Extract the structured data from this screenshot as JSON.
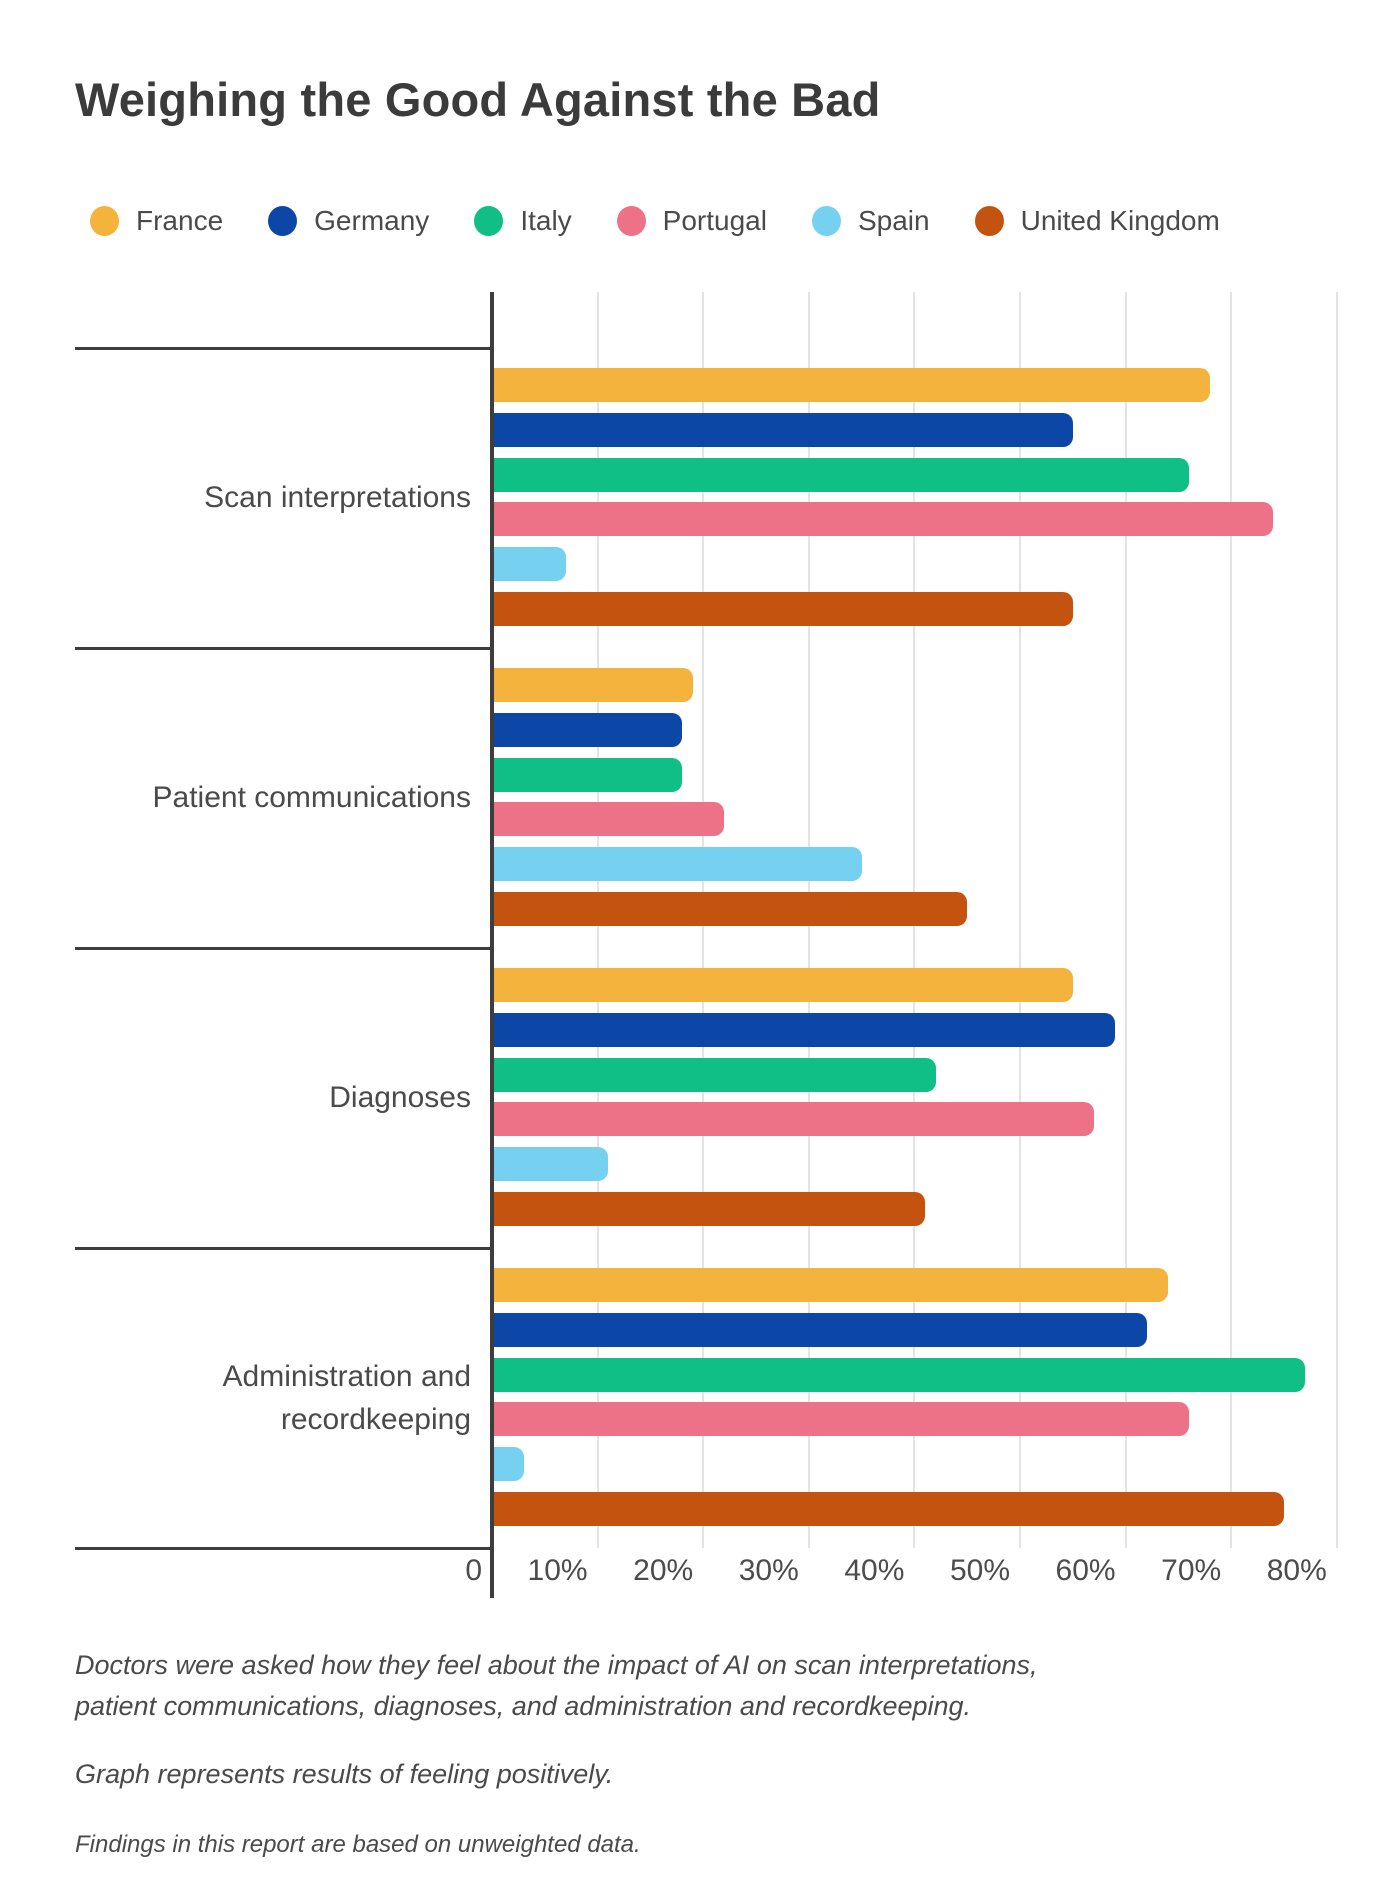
{
  "title": "Weighing the Good Against the Bad",
  "legend": [
    {
      "label": "France",
      "color": "#F3B33C"
    },
    {
      "label": "Germany",
      "color": "#0C47A8"
    },
    {
      "label": "Italy",
      "color": "#0FBF85"
    },
    {
      "label": "Portugal",
      "color": "#EE7287"
    },
    {
      "label": "Spain",
      "color": "#76D0F0"
    },
    {
      "label": "United Kingdom",
      "color": "#C3530E"
    }
  ],
  "chart_data": {
    "type": "bar",
    "orientation": "horizontal",
    "title": "Weighing the Good Against the Bad",
    "categories": [
      "Scan interpretations",
      "Patient communications",
      "Diagnoses",
      "Administration and recordkeeping"
    ],
    "series": [
      {
        "name": "France",
        "color": "#F3B33C",
        "values": [
          68,
          19,
          55,
          64
        ]
      },
      {
        "name": "Germany",
        "color": "#0C47A8",
        "values": [
          55,
          18,
          59,
          62
        ]
      },
      {
        "name": "Italy",
        "color": "#0FBF85",
        "values": [
          66,
          18,
          42,
          77
        ]
      },
      {
        "name": "Portugal",
        "color": "#EE7287",
        "values": [
          74,
          22,
          57,
          66
        ]
      },
      {
        "name": "Spain",
        "color": "#76D0F0",
        "values": [
          7,
          35,
          11,
          3
        ]
      },
      {
        "name": "United Kingdom",
        "color": "#C3530E",
        "values": [
          55,
          45,
          41,
          75
        ]
      }
    ],
    "xlabel": "",
    "ylabel": "",
    "xlim": [
      0,
      80
    ],
    "x_ticks": [
      "0",
      "10%",
      "20%",
      "30%",
      "40%",
      "50%",
      "60%",
      "70%",
      "80%"
    ],
    "grid": "vertical",
    "legend_position": "top"
  },
  "footnotes": {
    "line1": "Doctors were asked how they feel about the impact of AI on scan interpretations, patient communications, diagnoses, and administration and recordkeeping.",
    "line2": "Graph represents results of feeling positively.",
    "line3": "Findings in this report are based on unweighted data."
  }
}
